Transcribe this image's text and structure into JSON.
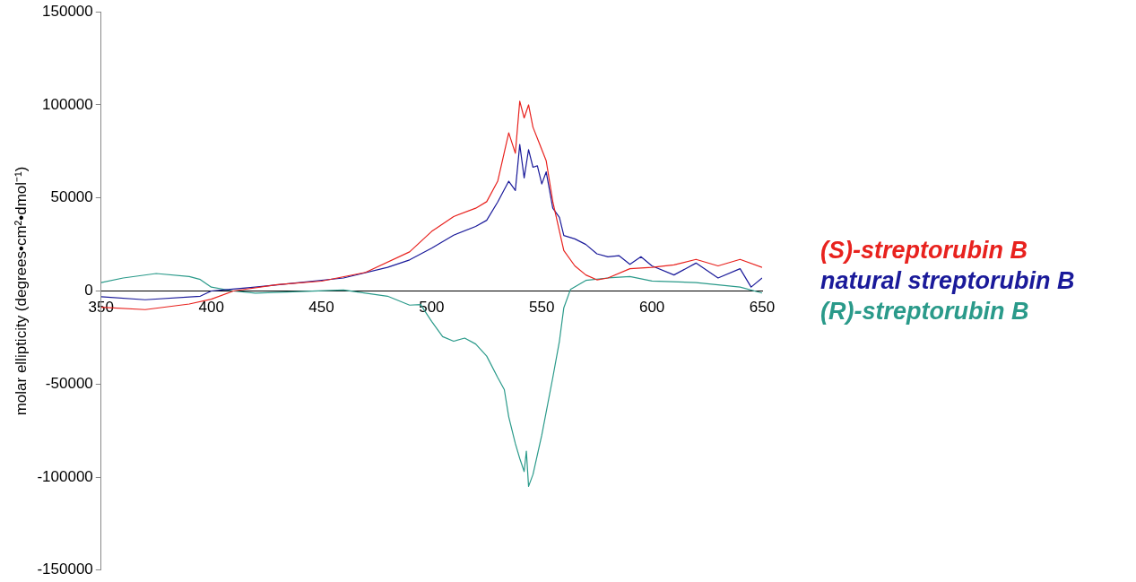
{
  "chart_data": {
    "type": "line",
    "ylabel": "molar ellipticity (degrees•cm²•dmol⁻¹)",
    "xlim": [
      350,
      650
    ],
    "xticks": [
      350,
      400,
      450,
      500,
      550,
      600,
      650
    ],
    "ylim": [
      -150000,
      150000
    ],
    "yticks": [
      -150000,
      -100000,
      -50000,
      0,
      50000,
      100000,
      150000
    ],
    "legend": "right",
    "grid": false,
    "marker": "none",
    "line_style": "solid",
    "series": [
      {
        "name": "(S)-streptorubin B",
        "color": "#e8221e",
        "x": [
          350,
          370,
          390,
          400,
          410,
          430,
          450,
          470,
          490,
          500,
          510,
          520,
          525,
          530,
          535,
          538,
          540,
          542,
          544,
          546,
          549,
          552,
          555,
          560,
          565,
          570,
          575,
          580,
          590,
          600,
          610,
          620,
          630,
          640,
          650
        ],
        "values": [
          -8700,
          -10000,
          -7000,
          -4400,
          0,
          3400,
          5300,
          10000,
          21000,
          32000,
          40000,
          44500,
          48000,
          59000,
          85000,
          74000,
          102000,
          93000,
          100000,
          88000,
          79000,
          70000,
          48000,
          21700,
          13500,
          8600,
          6000,
          7000,
          12000,
          12700,
          14000,
          17000,
          13500,
          17000,
          12700
        ]
      },
      {
        "name": "natural streptorubin B",
        "color": "#1a1a9a",
        "x": [
          350,
          370,
          395,
          400,
          420,
          440,
          460,
          480,
          490,
          500,
          510,
          520,
          525,
          530,
          535,
          538,
          540,
          542,
          544,
          546,
          548,
          550,
          552,
          555,
          558,
          560,
          565,
          570,
          575,
          580,
          585,
          590,
          595,
          600,
          610,
          620,
          630,
          640,
          645,
          650
        ],
        "values": [
          -3100,
          -4700,
          -2800,
          0,
          2100,
          4500,
          7000,
          12700,
          16700,
          23000,
          30000,
          34700,
          38000,
          47800,
          59000,
          54000,
          78700,
          60800,
          76000,
          66500,
          67300,
          57500,
          64000,
          44500,
          39600,
          29800,
          28000,
          25000,
          20000,
          18400,
          19000,
          14300,
          18400,
          13500,
          8600,
          15000,
          7000,
          12000,
          2100,
          7000
        ]
      },
      {
        "name": "(R)-streptorubin B",
        "color": "#2a9a8a",
        "x": [
          350,
          360,
          375,
          390,
          395,
          400,
          410,
          420,
          440,
          460,
          470,
          480,
          490,
          495,
          500,
          505,
          510,
          515,
          520,
          525,
          530,
          533,
          535,
          538,
          540,
          542,
          543,
          544,
          546,
          550,
          555,
          558,
          560,
          563,
          570,
          580,
          590,
          600,
          620,
          640,
          650
        ],
        "values": [
          4500,
          7000,
          9400,
          7800,
          6200,
          2100,
          0,
          -1100,
          -300,
          500,
          -1100,
          -2800,
          -7600,
          -7300,
          -16300,
          -24500,
          -27000,
          -25300,
          -28500,
          -35000,
          -46500,
          -53000,
          -67600,
          -82000,
          -90000,
          -97000,
          -86000,
          -105000,
          -98600,
          -77400,
          -46500,
          -27000,
          -9000,
          800,
          5700,
          7000,
          7800,
          5400,
          4500,
          2100,
          -1100
        ]
      }
    ]
  }
}
